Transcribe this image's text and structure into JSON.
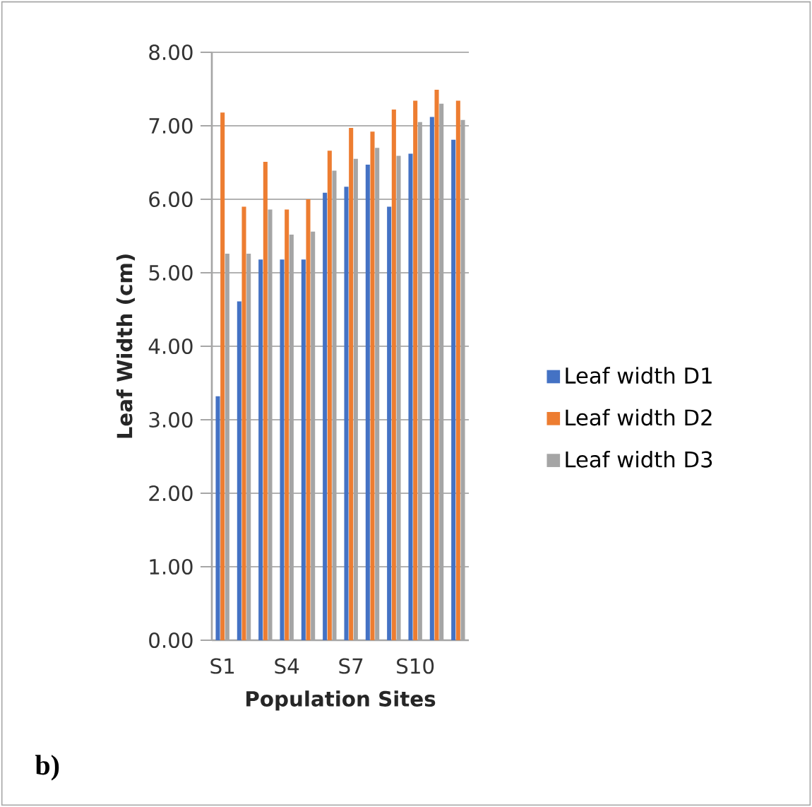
{
  "chart_data": {
    "type": "bar",
    "xlabel": "Population Sites",
    "ylabel": "Leaf Width (cm)",
    "categories": [
      "S1",
      null,
      null,
      "S4",
      null,
      null,
      "S7",
      null,
      null,
      "S10",
      null,
      null
    ],
    "series": [
      {
        "name": "Leaf width  D1",
        "color": "#4472c4",
        "values": [
          3.32,
          4.61,
          5.18,
          5.18,
          5.18,
          6.09,
          6.17,
          6.47,
          5.9,
          6.62,
          7.12,
          6.81
        ]
      },
      {
        "name": "Leaf width  D2",
        "color": "#ed7d31",
        "values": [
          7.18,
          5.9,
          6.51,
          5.86,
          6.0,
          6.66,
          6.97,
          6.92,
          7.22,
          7.34,
          7.49,
          7.34
        ]
      },
      {
        "name": "Leaf width  D3",
        "color": "#a5a5a5",
        "values": [
          5.26,
          5.26,
          5.86,
          5.52,
          5.56,
          6.39,
          6.55,
          6.7,
          6.59,
          7.05,
          7.3,
          7.08
        ]
      }
    ],
    "ylim": [
      0,
      8
    ],
    "yticks": [
      {
        "value": 0,
        "label": "0.00"
      },
      {
        "value": 1,
        "label": "1.00"
      },
      {
        "value": 2,
        "label": "2.00"
      },
      {
        "value": 3,
        "label": "3.00"
      },
      {
        "value": 4,
        "label": "4.00"
      },
      {
        "value": 5,
        "label": "5.00"
      },
      {
        "value": 6,
        "label": "6.00"
      },
      {
        "value": 7,
        "label": "7.00"
      },
      {
        "value": 8,
        "label": "8.00"
      }
    ],
    "grid": "y",
    "legend": "right",
    "annotations": [
      "b)"
    ]
  }
}
